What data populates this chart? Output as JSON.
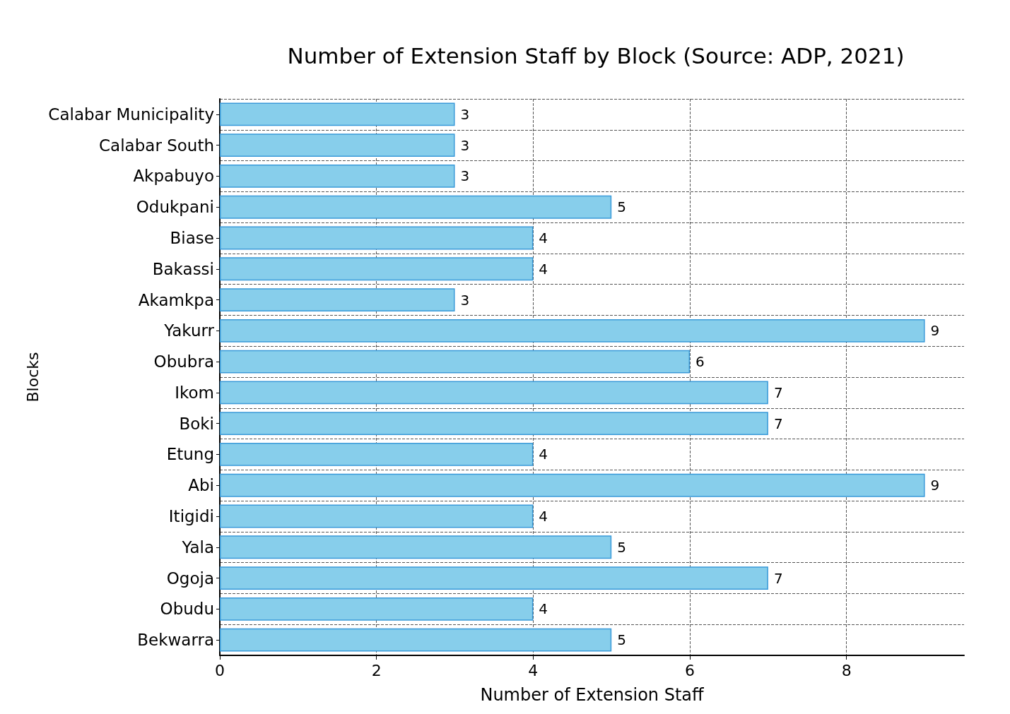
{
  "chart_data": {
    "type": "bar",
    "orientation": "horizontal",
    "title": "Number of Extension Staff by Block (Source: ADP, 2021)",
    "xlabel": "Number of Extension Staff",
    "ylabel": "Blocks",
    "categories": [
      "Calabar Municipality",
      "Calabar South",
      "Akpabuyo",
      "Odukpani",
      "Biase",
      "Bakassi",
      "Akamkpa",
      "Yakurr",
      "Obubra",
      "Ikom",
      "Boki",
      "Etung",
      "Abi",
      "Itigidi",
      "Yala",
      "Ogoja",
      "Obudu",
      "Bekwarra"
    ],
    "values": [
      3,
      3,
      3,
      5,
      4,
      4,
      3,
      9,
      6,
      7,
      7,
      4,
      9,
      4,
      5,
      7,
      4,
      5
    ],
    "color": "#87ceeb",
    "xlim": [
      0,
      9.5
    ],
    "xticks": [
      0,
      2,
      4,
      6,
      8
    ],
    "grid": true,
    "data_labels": true
  }
}
